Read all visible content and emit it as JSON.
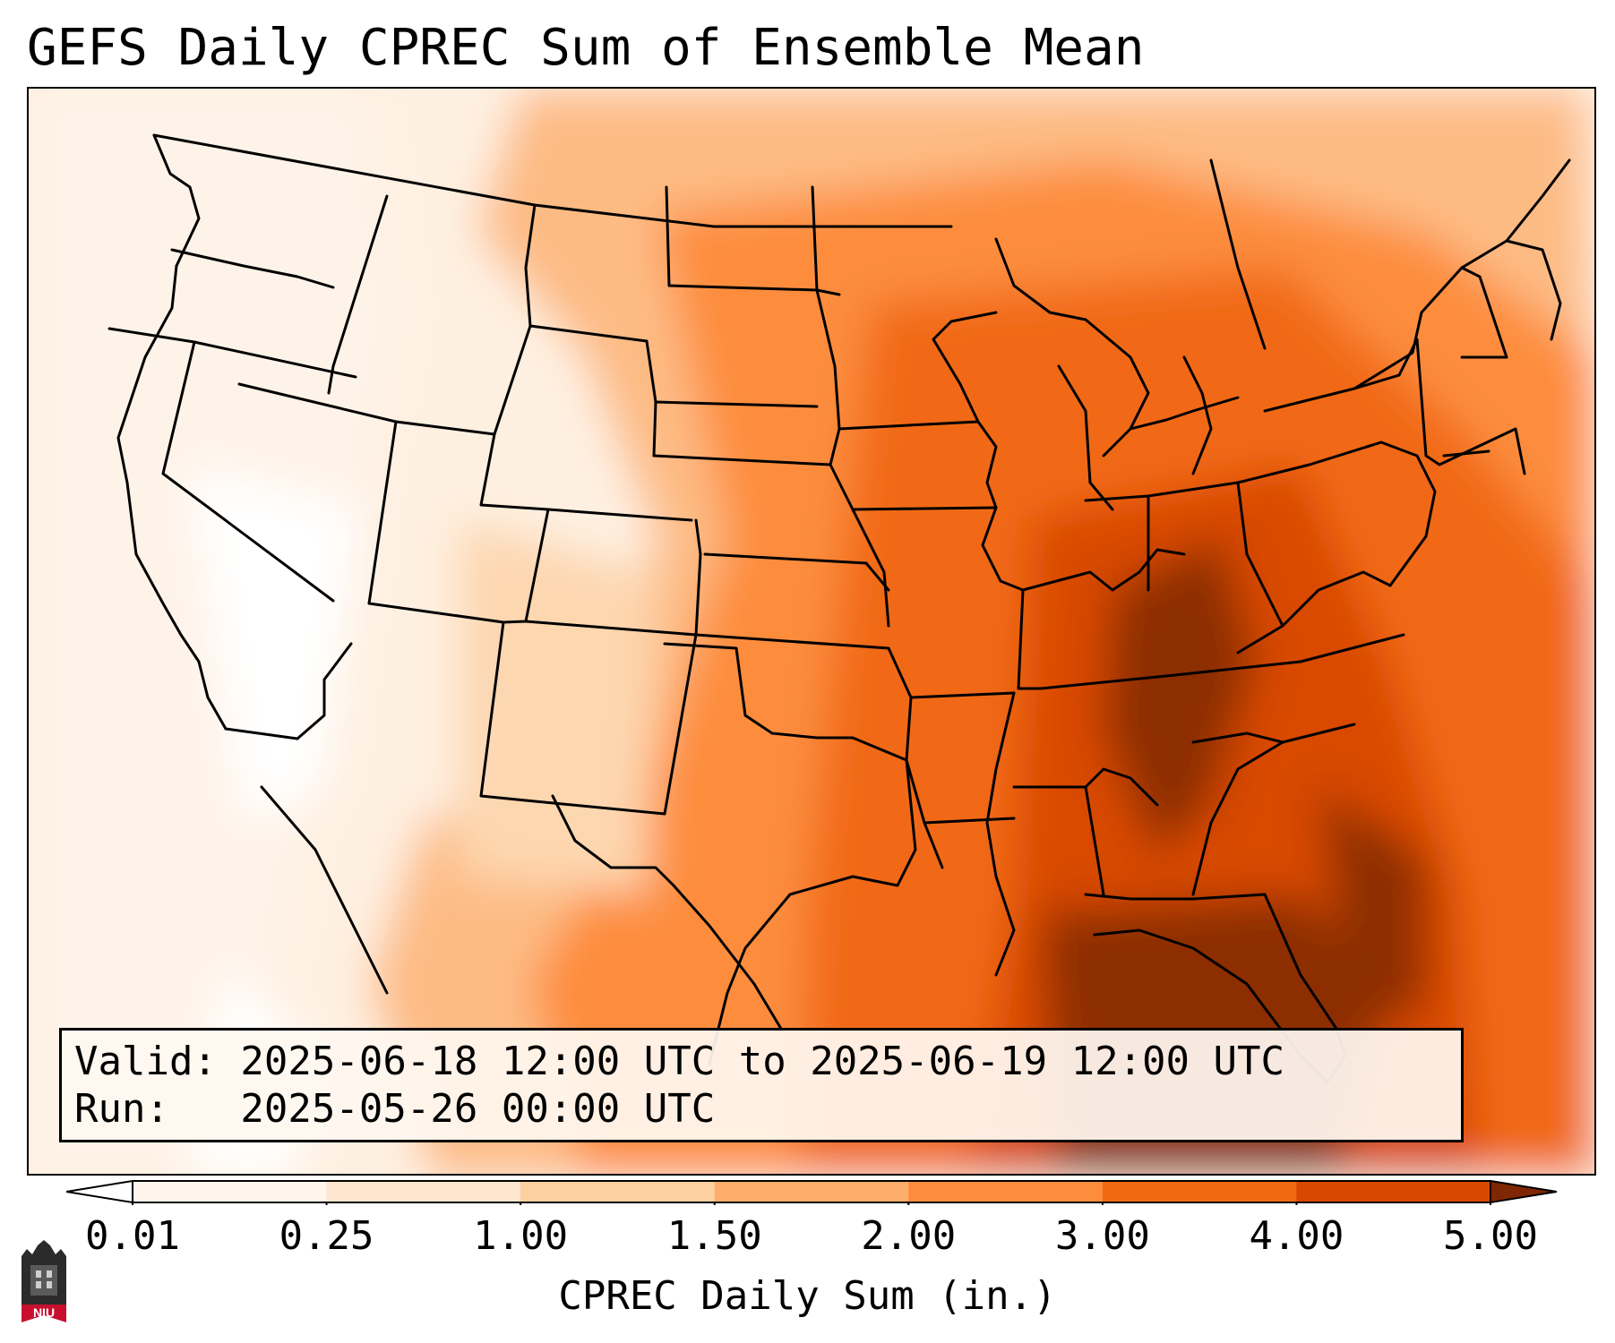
{
  "title": "GEFS Daily CPREC Sum of Ensemble Mean",
  "info": {
    "valid_line": "Valid: 2025-06-18 12:00 UTC to 2025-06-19 12:00 UTC",
    "run_line": "Run:   2025-05-26 00:00 UTC"
  },
  "colorbar": {
    "label": "CPREC Daily Sum (in.)",
    "ticks": [
      "0.01",
      "0.25",
      "1.00",
      "1.50",
      "2.00",
      "3.00",
      "4.00",
      "5.00"
    ],
    "colors": [
      "#fff5eb",
      "#fee6ce",
      "#fdd0a2",
      "#fdae6b",
      "#fd8d3c",
      "#f16913",
      "#d94801",
      "#8c2d04"
    ],
    "under_color": "#ffffff",
    "over_color": "#7f2704"
  },
  "logo": {
    "text": "NIU",
    "colors": {
      "tower": "#2b2b2b",
      "banner": "#c8102e"
    }
  },
  "map": {
    "variable": "CPREC",
    "units": "in.",
    "region": "Continental United States"
  }
}
